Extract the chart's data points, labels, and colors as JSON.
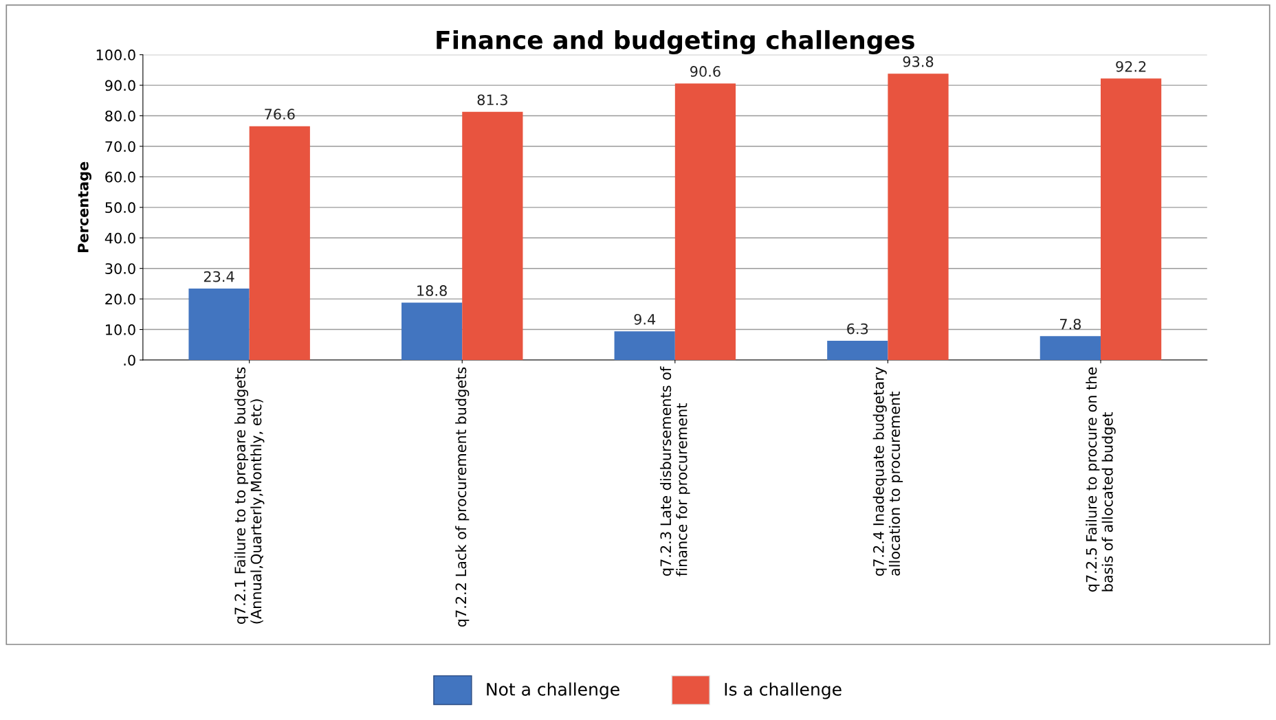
{
  "chart_data": {
    "type": "bar",
    "title": "Finance and budgeting challenges",
    "ylabel": "Percentage",
    "categories": [
      "q7.2.1 Failure to to prepare budgets\n(Annual,Quarterly,Monthly, etc)",
      "q7.2.2 Lack of procurement budgets",
      "q7.2.3 Late disbursements of\nfinance for procurement",
      "q7.2.4 Inadequate budgetary\nallocation to procurement",
      "q7.2.5 Failure to procure on the\nbasis of allocated budget"
    ],
    "series": [
      {
        "name": "Not a challenge",
        "color": "#4275c0",
        "values": [
          23.4,
          18.8,
          9.4,
          6.3,
          7.8
        ]
      },
      {
        "name": "Is a challenge",
        "color": "#e8543f",
        "values": [
          76.6,
          81.3,
          90.6,
          93.8,
          92.2
        ]
      }
    ],
    "ylim": [
      0,
      100
    ],
    "yticks": [
      {
        "value": 0,
        "label": ".0"
      },
      {
        "value": 10,
        "label": "10.0"
      },
      {
        "value": 20,
        "label": "20.0"
      },
      {
        "value": 30,
        "label": "30.0"
      },
      {
        "value": 40,
        "label": "40.0"
      },
      {
        "value": 50,
        "label": "50.0"
      },
      {
        "value": 60,
        "label": "60.0"
      },
      {
        "value": 70,
        "label": "70.0"
      },
      {
        "value": 80,
        "label": "80.0"
      },
      {
        "value": 90,
        "label": "90.0"
      },
      {
        "value": 100,
        "label": "100.0"
      }
    ],
    "grid": "y",
    "legend": "bottom",
    "data_labels": true
  }
}
